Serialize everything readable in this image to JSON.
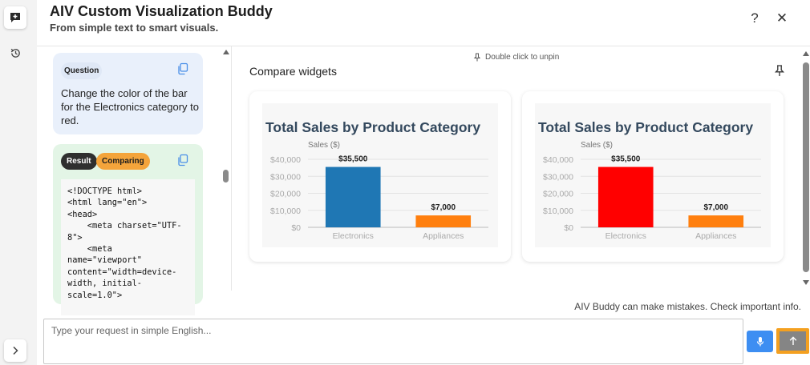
{
  "app": {
    "title": "AIV Custom Visualization Buddy",
    "subtitle": "From simple text to smart visuals.",
    "help_label": "?",
    "close_label": "✕"
  },
  "rail": {
    "icons": [
      "new-chat-icon",
      "history-icon",
      "expand-icon"
    ]
  },
  "chat": {
    "question_badge": "Question",
    "question_text": "Change the color of the bar for the Electronics category to red.",
    "result_badge": "Result",
    "comparing_badge": "Comparing",
    "code": "<!DOCTYPE html>\n<html lang=\"en\">\n<head>\n    <meta charset=\"UTF-\n8\">\n    <meta\nname=\"viewport\"\ncontent=\"width=device-\nwidth, initial-\nscale=1.0\">"
  },
  "pin_area": {
    "unpin_hint": "Double click to unpin",
    "compare_title": "Compare widgets"
  },
  "colors": {
    "accent_blue": "#3d8ef2",
    "accent_orange": "#f4a020",
    "result_badge": "#2f2f2f",
    "comparing_badge": "#f4a43b"
  },
  "chart_data": [
    {
      "type": "bar",
      "title": "Total Sales by Product Category",
      "ylabel": "Sales ($)",
      "categories": [
        "Electronics",
        "Appliances"
      ],
      "values": [
        35500,
        7000
      ],
      "value_labels": [
        "$35,500",
        "$7,000"
      ],
      "bar_colors": [
        "#1f77b4",
        "#ff7f0e"
      ],
      "yticks": [
        "$0",
        "$10,000",
        "$20,000",
        "$30,000",
        "$40,000"
      ],
      "ylim": [
        0,
        40000
      ],
      "grid": true
    },
    {
      "type": "bar",
      "title": "Total Sales by Product Category",
      "ylabel": "Sales ($)",
      "categories": [
        "Electronics",
        "Appliances"
      ],
      "values": [
        35500,
        7000
      ],
      "value_labels": [
        "$35,500",
        "$7,000"
      ],
      "bar_colors": [
        "#ff0000",
        "#ff7f0e"
      ],
      "yticks": [
        "$0",
        "$10,000",
        "$20,000",
        "$30,000",
        "$40,000"
      ],
      "ylim": [
        0,
        40000
      ],
      "grid": true
    }
  ],
  "footer": {
    "disclaimer": "AIV Buddy can make mistakes. Check important info.",
    "input_placeholder": "Type your request in simple English...",
    "input_value": ""
  }
}
